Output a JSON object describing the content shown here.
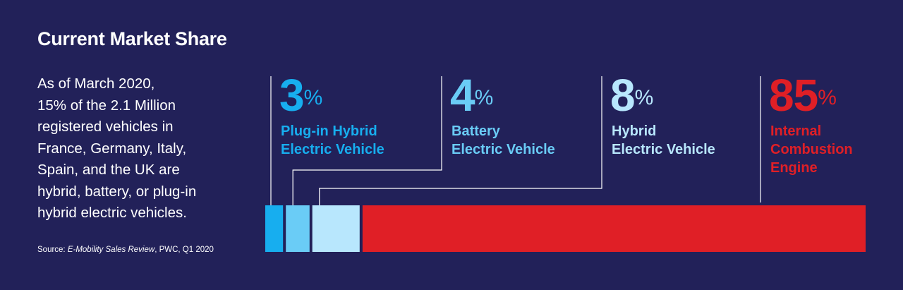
{
  "title": "Current Market Share",
  "description_lines": [
    "As of March 2020,",
    "15% of the 2.1 Million",
    "registered vehicles in",
    "France, Germany, Italy,",
    "Spain, and the UK are",
    "hybrid, battery, or plug-in",
    "hybrid electric vehicles."
  ],
  "source": {
    "prefix": "Source: ",
    "title": "E-Mobility Sales Review",
    "suffix": ", PWC, Q1 2020"
  },
  "chart_data": {
    "type": "bar",
    "orientation": "horizontal-stacked",
    "unit": "%",
    "segments": [
      {
        "name": "Plug-in Hybrid Electric Vehicle",
        "label_lines": [
          "Plug-in Hybrid",
          "Electric Vehicle"
        ],
        "value": 3,
        "value_label": "3",
        "color": "#17AEEF"
      },
      {
        "name": "Battery Electric Vehicle",
        "label_lines": [
          "Battery",
          "Electric Vehicle"
        ],
        "value": 4,
        "value_label": "4",
        "color": "#6ACCF6"
      },
      {
        "name": "Hybrid Electric Vehicle",
        "label_lines": [
          "Hybrid",
          "Electric Vehicle"
        ],
        "value": 8,
        "value_label": "8",
        "color": "#B8E7FD"
      },
      {
        "name": "Internal Combustion Engine",
        "label_lines": [
          "Internal",
          "Combustion",
          "Engine"
        ],
        "value": 85,
        "value_label": "85",
        "color": "#E01F26"
      }
    ]
  },
  "colors": {
    "background": "#222159",
    "text": "#FFFFFF",
    "connector": "#FFFFFF"
  }
}
